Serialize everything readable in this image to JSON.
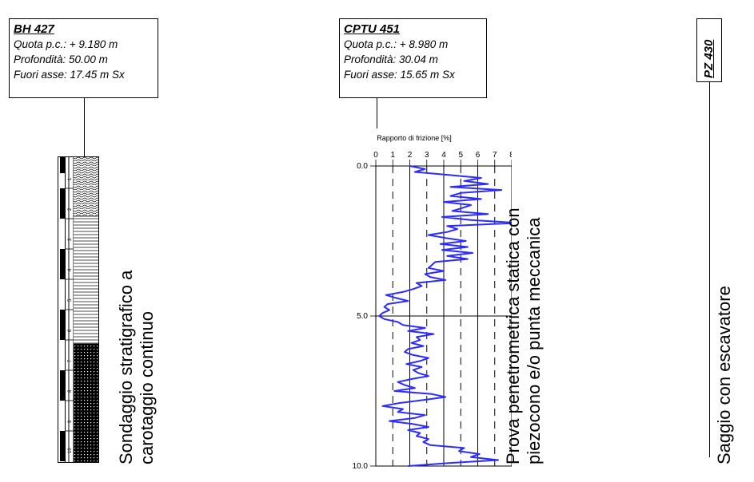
{
  "borehole": {
    "title": "BH 427",
    "quota": "Quota p.c.: + 9.180 m",
    "profondita": "Profondità: 50.00 m",
    "fuori_asse": "Fuori asse: 17.45 m Sx",
    "description_line1": "Sondaggio stratigrafico a",
    "description_line2": "carotaggio continuo",
    "depth_marks": [
      "1",
      "2",
      "3",
      "4",
      "5",
      "6",
      "7",
      "8",
      "9",
      "10"
    ]
  },
  "cptu": {
    "title": "CPTU 451",
    "quota": "Quota p.c.: + 8.980 m",
    "profondita": "Profondità: 30.04 m",
    "fuori_asse": "Fuori asse: 15.65 m Sx",
    "description_line1": "Prova penetrometrica statica con",
    "description_line2": "piezocono e/o punta meccanica"
  },
  "pz": {
    "title": "PZ 430",
    "description": "Saggio con escavatore"
  },
  "chart_data": {
    "type": "line",
    "title": "Rapporto di frizione [%]",
    "x_ticks": [
      "0",
      "1",
      "2",
      "3",
      "4",
      "5",
      "6",
      "7",
      "8"
    ],
    "y_ticks": [
      "0.0",
      "5.0",
      "10.0"
    ],
    "xlim": [
      0,
      8
    ],
    "ylim": [
      0,
      10
    ],
    "y_inverted": true,
    "series_color": "#2b2bff",
    "series": [
      {
        "depth": [
          0.0,
          0.1,
          0.2,
          0.3,
          0.4,
          0.5,
          0.6,
          0.7,
          0.8,
          0.9,
          1.0,
          1.1,
          1.2,
          1.3,
          1.4,
          1.5,
          1.6,
          1.7,
          1.8,
          1.9,
          2.0,
          2.1,
          2.2,
          2.3,
          2.4,
          2.5,
          2.6,
          2.7,
          2.8,
          2.9,
          3.0,
          3.1,
          3.2,
          3.3,
          3.4,
          3.5,
          3.6,
          3.7,
          3.8,
          3.9,
          4.0,
          4.1,
          4.2,
          4.3,
          4.4,
          4.5,
          4.6,
          4.7,
          4.8,
          4.9,
          5.0,
          5.1,
          5.2,
          5.3,
          5.4,
          5.5,
          5.6,
          5.7,
          5.8,
          5.9,
          6.0,
          6.1,
          6.2,
          6.3,
          6.4,
          6.5,
          6.6,
          6.7,
          6.8,
          6.9,
          7.0,
          7.1,
          7.2,
          7.3,
          7.4,
          7.5,
          7.6,
          7.7,
          7.8,
          7.9,
          8.0,
          8.1,
          8.2,
          8.3,
          8.4,
          8.5,
          8.6,
          8.7,
          8.8,
          8.9,
          9.0,
          9.1,
          9.2,
          9.3,
          9.4,
          9.5,
          9.6,
          9.7,
          9.8,
          9.9,
          10.0
        ],
        "ratio": [
          2.0,
          2.9,
          2.3,
          4.3,
          6.2,
          5.2,
          6.6,
          4.4,
          7.4,
          5.0,
          4.4,
          6.2,
          4.0,
          5.6,
          5.1,
          4.5,
          6.6,
          3.9,
          5.6,
          8.4,
          4.2,
          4.8,
          4.2,
          3.1,
          4.1,
          5.3,
          3.8,
          5.4,
          3.9,
          5.7,
          4.2,
          5.4,
          3.5,
          3.3,
          3.1,
          4.0,
          2.9,
          3.2,
          4.1,
          2.4,
          2.7,
          2.2,
          1.6,
          0.6,
          1.2,
          1.9,
          0.7,
          0.5,
          0.8,
          0.4,
          0.2,
          0.5,
          1.3,
          1.6,
          2.9,
          1.9,
          3.4,
          2.4,
          2.6,
          2.1,
          2.8,
          1.9,
          1.7,
          2.2,
          3.1,
          2.6,
          1.8,
          2.7,
          2.2,
          2.5,
          3.1,
          2.1,
          1.3,
          1.7,
          2.3,
          1.1,
          3.3,
          4.1,
          2.8,
          1.4,
          0.4,
          1.6,
          1.3,
          2.9,
          2.3,
          0.8,
          2.2,
          3.1,
          1.9,
          2.6,
          2.4,
          3.1,
          2.8,
          3.2,
          5.2,
          4.9,
          6.1,
          5.6,
          7.2,
          4.3,
          1.9
        ]
      }
    ]
  }
}
